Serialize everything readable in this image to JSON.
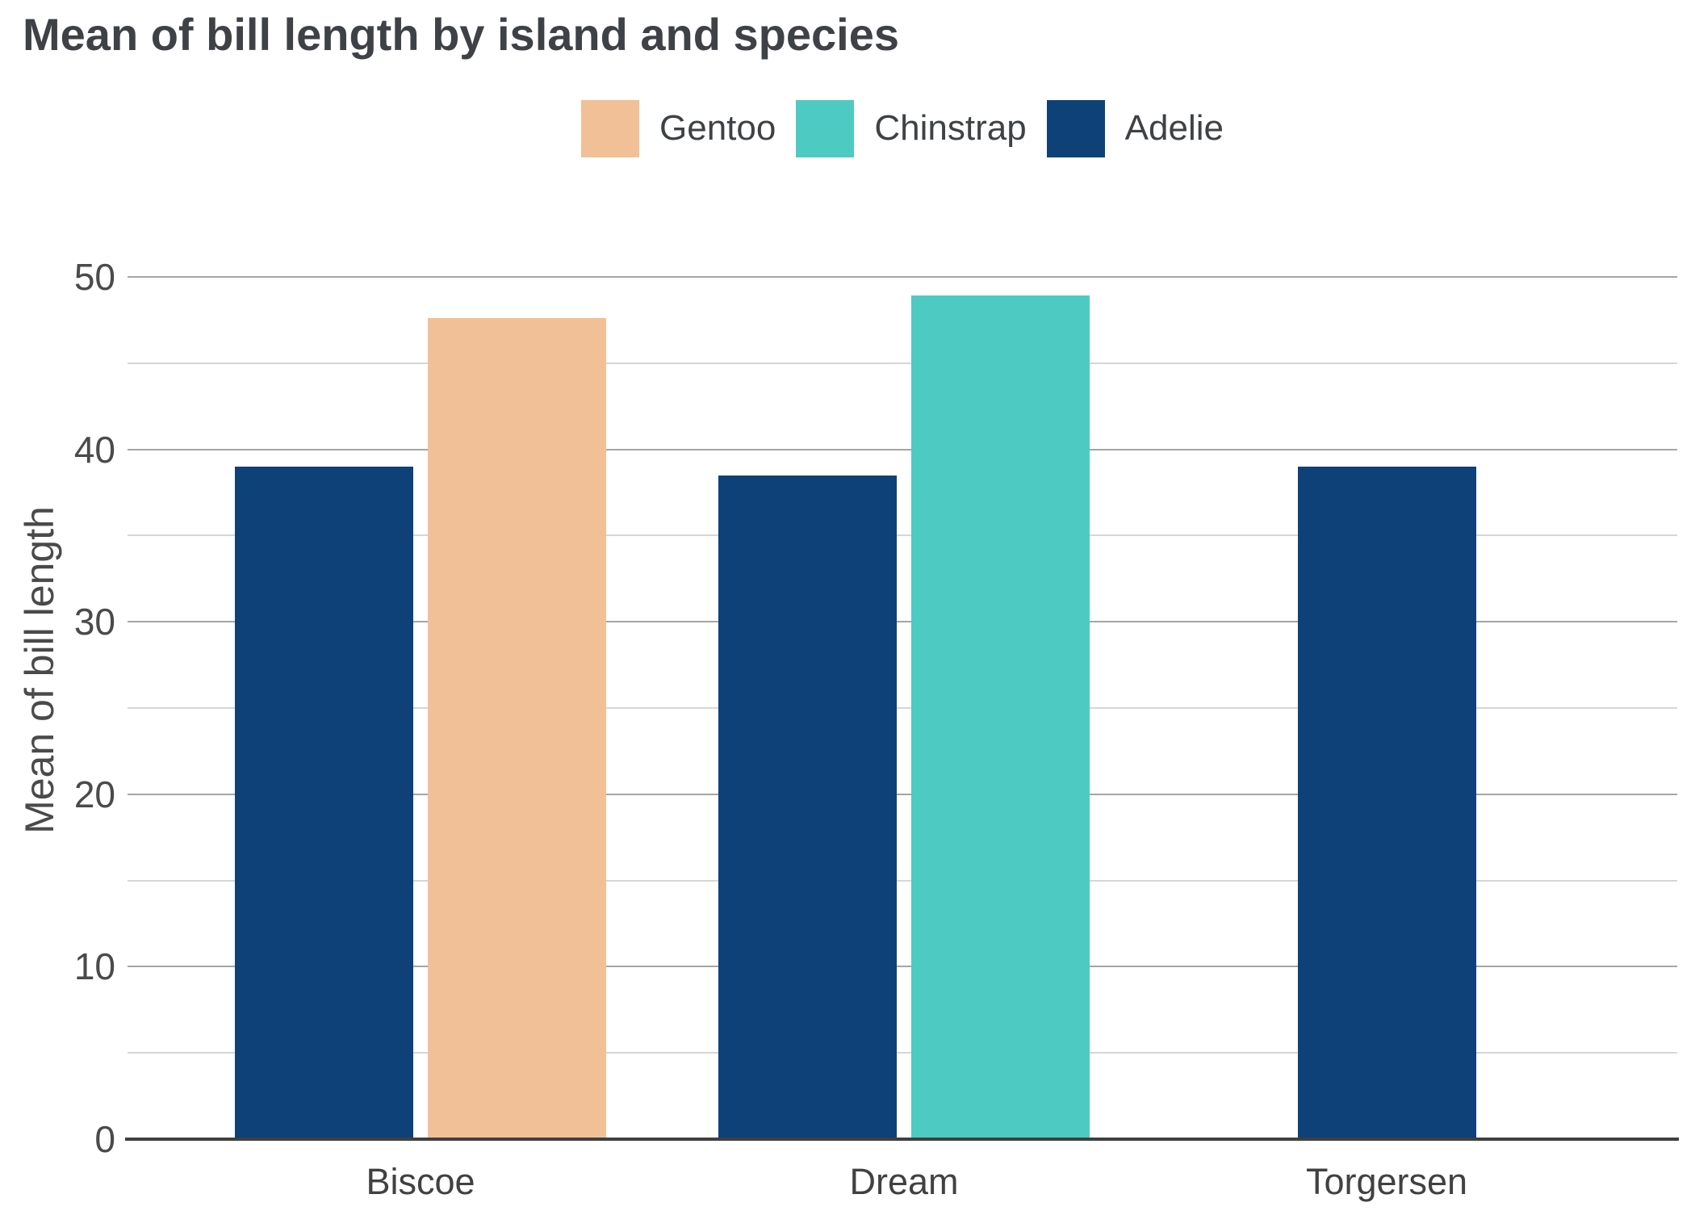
{
  "chart_data": {
    "type": "bar",
    "title": "Mean of bill length by island and species",
    "xlabel": "",
    "ylabel": "Mean of bill length",
    "ylim": [
      0,
      50
    ],
    "y_major_ticks": [
      0,
      10,
      20,
      30,
      40,
      50
    ],
    "y_minor_tick_step": 5,
    "grid": "horizontal major and minor gridlines",
    "legend_position": "top-center",
    "legend": [
      {
        "name": "Gentoo",
        "color": "#F2C096"
      },
      {
        "name": "Chinstrap",
        "color": "#4DCBC3"
      },
      {
        "name": "Adelie",
        "color": "#0E4178"
      }
    ],
    "categories": [
      "Biscoe",
      "Dream",
      "Torgersen"
    ],
    "groups": [
      {
        "island": "Biscoe",
        "bars": [
          {
            "species": "Adelie",
            "value": 39.0
          },
          {
            "species": "Gentoo",
            "value": 47.6
          }
        ]
      },
      {
        "island": "Dream",
        "bars": [
          {
            "species": "Adelie",
            "value": 38.5
          },
          {
            "species": "Chinstrap",
            "value": 48.9
          }
        ]
      },
      {
        "island": "Torgersen",
        "bars": [
          {
            "species": "Adelie",
            "value": 39.0
          }
        ]
      }
    ],
    "series": [
      {
        "name": "Gentoo",
        "values": [
          47.6,
          null,
          null
        ]
      },
      {
        "name": "Chinstrap",
        "values": [
          null,
          48.9,
          null
        ]
      },
      {
        "name": "Adelie",
        "values": [
          39.0,
          38.5,
          39.0
        ]
      }
    ]
  },
  "style_colors": {
    "title_text": "#3E4145",
    "axis_text": "#4A4A4A",
    "major_grid": "#A5A5A5",
    "minor_grid": "#D6D6D6",
    "axis_line": "#3F3F3F"
  }
}
